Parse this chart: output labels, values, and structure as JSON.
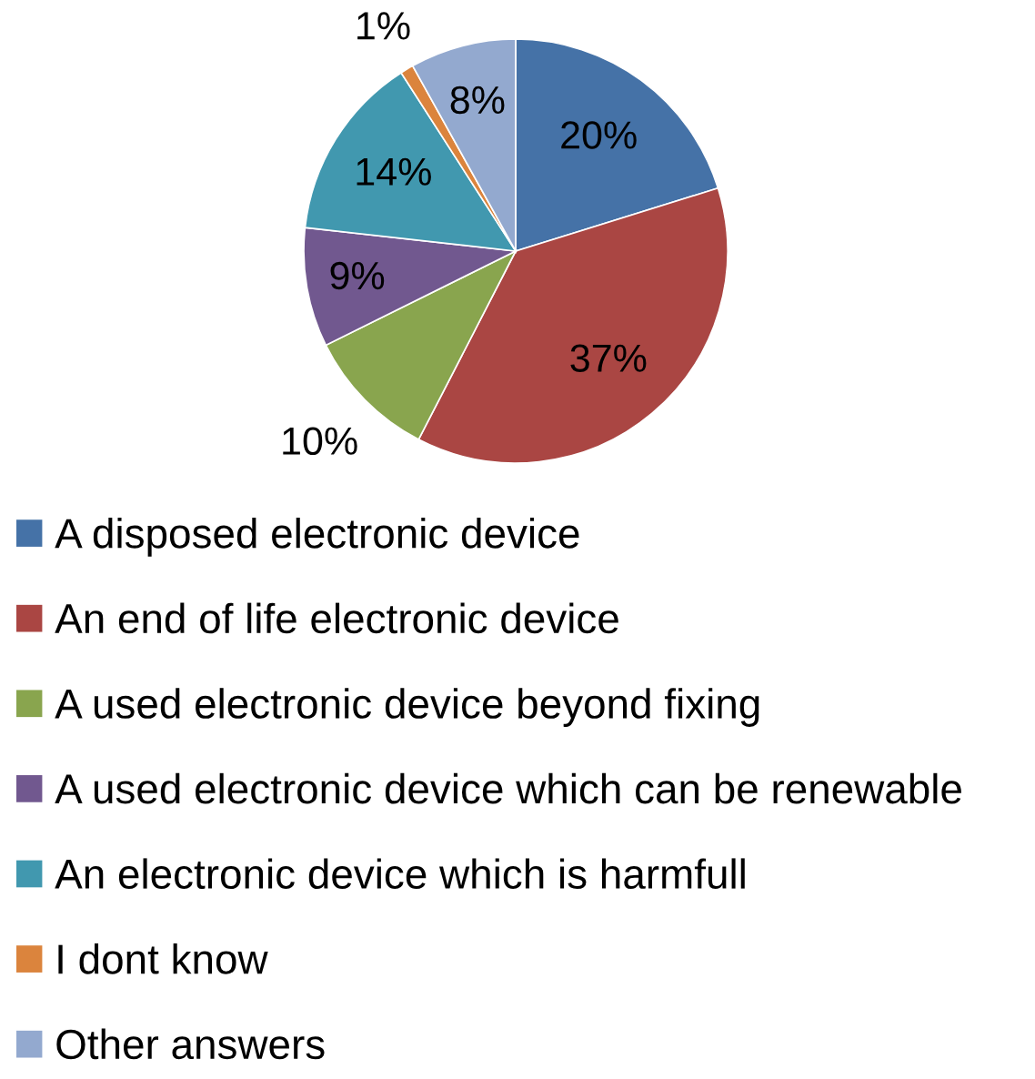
{
  "chart_data": {
    "type": "pie",
    "categories": [
      "A disposed electronic device",
      "An end of life electronic device",
      "A used electronic device beyond fixing",
      "A used electronic device which can be renewable",
      "An electronic device which is harmfull",
      "I dont know",
      "Other answers"
    ],
    "values": [
      20,
      37,
      10,
      9,
      14,
      1,
      8
    ],
    "value_labels": [
      "20%",
      "37%",
      "10%",
      "9%",
      "14%",
      "1%",
      "8%"
    ],
    "colors": [
      "#4572a7",
      "#aa4643",
      "#89a54e",
      "#71588f",
      "#4198af",
      "#db843d",
      "#93a9cf"
    ],
    "legend": "bottom"
  }
}
